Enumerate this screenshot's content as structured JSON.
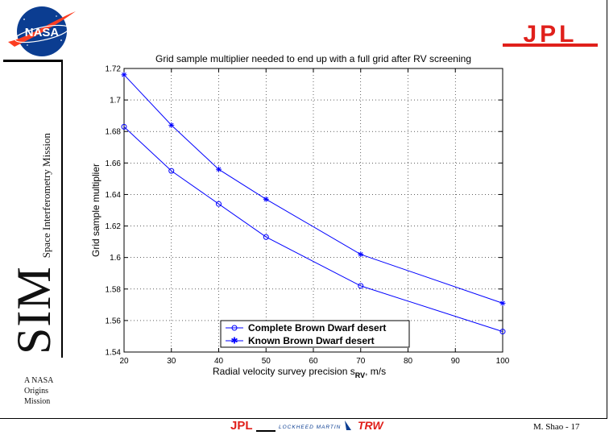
{
  "branding": {
    "nasa_logo_text": "NASA",
    "jpl_logo_text": "JPL",
    "program_big": "SIM",
    "program_subtitle": "Space Interferometry Mission",
    "origins_line1": "A NASA",
    "origins_line2": "Origins",
    "origins_line3": "Mission",
    "footer_partners": [
      "JPL",
      "LOCKHEED MARTIN",
      "TRW"
    ],
    "footer_credit": "M. Shao - 17",
    "colors": {
      "nasa_blue": "#0b3d91",
      "nasa_red": "#fc3d21",
      "jpl_red": "#e0201b",
      "series": "#0000ff"
    }
  },
  "chart_data": {
    "type": "line",
    "title": "Grid sample multiplier needed to end up with a full grid after RV screening",
    "xlabel": "Radial velocity survey precision s",
    "xlabel_sub": "RV",
    "xlabel_unit": ", m/s",
    "ylabel": "Grid sample multiplier",
    "xlim": [
      20,
      100
    ],
    "ylim": [
      1.54,
      1.72
    ],
    "xticks": [
      20,
      30,
      40,
      50,
      60,
      70,
      80,
      90,
      100
    ],
    "yticks": [
      1.54,
      1.56,
      1.58,
      1.6,
      1.62,
      1.64,
      1.66,
      1.68,
      1.7,
      1.72
    ],
    "grid": true,
    "legend_position": "bottom-center",
    "series": [
      {
        "name": "Complete Brown Dwarf desert",
        "marker": "o",
        "x": [
          20,
          30,
          40,
          50,
          70,
          100
        ],
        "y": [
          1.683,
          1.655,
          1.634,
          1.613,
          1.582,
          1.553
        ]
      },
      {
        "name": "Known Brown Dwarf desert",
        "marker": "*",
        "x": [
          20,
          30,
          40,
          50,
          70,
          100
        ],
        "y": [
          1.716,
          1.684,
          1.656,
          1.637,
          1.602,
          1.571
        ]
      }
    ]
  }
}
